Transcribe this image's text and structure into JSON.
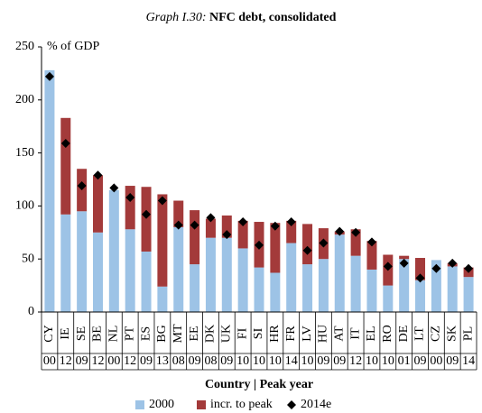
{
  "chart_data": {
    "type": "bar",
    "title_prefix": "Graph I.30:",
    "title": "NFC debt, consolidated",
    "y_label": "% of GDP",
    "x_label": "Country | Peak year",
    "categories": [
      "CY",
      "IE",
      "SE",
      "BE",
      "NL",
      "PT",
      "ES",
      "BG",
      "MT",
      "EE",
      "DK",
      "UK",
      "FI",
      "SI",
      "HR",
      "FR",
      "LV",
      "HU",
      "AT",
      "IT",
      "EL",
      "RO",
      "DE",
      "LT",
      "CZ",
      "SK",
      "PL"
    ],
    "peak_years": [
      "00",
      "12",
      "09",
      "12",
      "00",
      "12",
      "09",
      "13",
      "08",
      "09",
      "08",
      "09",
      "10",
      "10",
      "10",
      "14",
      "10",
      "09",
      "09",
      "12",
      "10",
      "10",
      "01",
      "09",
      "00",
      "09",
      "14"
    ],
    "series": [
      {
        "name": "2000",
        "type": "bar",
        "color": "#9dc3e6",
        "values": [
          228,
          92,
          95,
          75,
          115,
          78,
          57,
          24,
          80,
          45,
          70,
          70,
          60,
          42,
          37,
          65,
          45,
          50,
          73,
          53,
          40,
          25,
          50,
          30,
          49,
          43,
          33
        ]
      },
      {
        "name": "incr. to peak",
        "type": "bar",
        "stacked": true,
        "color": "#a33a3a",
        "values": [
          0,
          91,
          40,
          54,
          0,
          41,
          61,
          87,
          25,
          51,
          18,
          21,
          26,
          43,
          47,
          21,
          38,
          29,
          3,
          25,
          27,
          29,
          3,
          21,
          0,
          3,
          9
        ]
      },
      {
        "name": "2014e",
        "type": "marker",
        "color": "#000000",
        "values": [
          222,
          159,
          119,
          129,
          117,
          108,
          92,
          105,
          82,
          82,
          89,
          73,
          85,
          63,
          81,
          85,
          58,
          65,
          76,
          75,
          66,
          43,
          46,
          32,
          41,
          46,
          41
        ]
      }
    ],
    "ylim": [
      0,
      250
    ],
    "yticks": [
      0,
      50,
      100,
      150,
      200,
      250
    ],
    "legend": "bottom"
  }
}
